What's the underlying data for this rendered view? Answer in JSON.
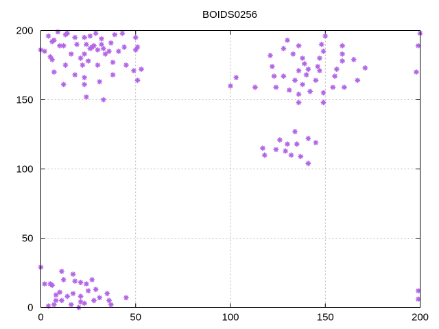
{
  "chart_data": {
    "type": "scatter",
    "title": "BOIDS0256",
    "xlabel": "",
    "ylabel": "",
    "xlim": [
      0,
      200
    ],
    "ylim": [
      0,
      200
    ],
    "x_ticks": [
      0,
      50,
      100,
      150,
      200
    ],
    "y_ticks": [
      0,
      50,
      100,
      150,
      200
    ],
    "grid": true,
    "legend": "none",
    "marker_color": "#b266e6",
    "marker": "asterisk",
    "series": [
      {
        "points": [
          [
            0,
            186
          ],
          [
            2,
            185
          ],
          [
            4,
            196
          ],
          [
            5,
            181
          ],
          [
            6,
            179
          ],
          [
            6,
            192
          ],
          [
            7,
            193
          ],
          [
            7,
            170
          ],
          [
            9,
            199
          ],
          [
            10,
            189
          ],
          [
            12,
            161
          ],
          [
            12,
            189
          ],
          [
            13,
            175
          ],
          [
            13,
            197
          ],
          [
            14,
            198
          ],
          [
            16,
            183
          ],
          [
            18,
            168
          ],
          [
            18,
            195
          ],
          [
            19,
            190
          ],
          [
            21,
            180
          ],
          [
            22,
            175
          ],
          [
            23,
            183
          ],
          [
            23,
            195
          ],
          [
            23,
            166
          ],
          [
            23,
            161
          ],
          [
            24,
            190
          ],
          [
            24,
            152
          ],
          [
            25,
            178
          ],
          [
            26,
            187
          ],
          [
            26,
            196
          ],
          [
            27,
            188
          ],
          [
            28,
            189
          ],
          [
            29,
            198
          ],
          [
            30,
            186
          ],
          [
            30,
            175
          ],
          [
            31,
            163
          ],
          [
            32,
            194
          ],
          [
            32,
            190
          ],
          [
            33,
            187
          ],
          [
            33,
            150
          ],
          [
            34,
            183
          ],
          [
            36,
            185
          ],
          [
            37,
            191
          ],
          [
            38,
            177
          ],
          [
            38,
            168
          ],
          [
            39,
            197
          ],
          [
            41,
            185
          ],
          [
            43,
            198
          ],
          [
            44,
            188
          ],
          [
            45,
            175
          ],
          [
            49,
            171
          ],
          [
            50,
            195
          ],
          [
            50,
            186
          ],
          [
            51,
            188
          ],
          [
            51,
            164
          ],
          [
            53,
            172
          ],
          [
            0,
            29
          ],
          [
            2,
            17
          ],
          [
            4,
            1
          ],
          [
            5,
            17
          ],
          [
            6,
            16
          ],
          [
            7,
            2
          ],
          [
            8,
            5
          ],
          [
            8,
            9
          ],
          [
            10,
            11
          ],
          [
            11,
            26
          ],
          [
            11,
            5
          ],
          [
            12,
            20
          ],
          [
            14,
            8
          ],
          [
            16,
            2
          ],
          [
            17,
            10
          ],
          [
            17,
            24
          ],
          [
            18,
            19
          ],
          [
            20,
            0
          ],
          [
            21,
            18
          ],
          [
            21,
            8
          ],
          [
            21,
            4
          ],
          [
            23,
            3
          ],
          [
            24,
            17
          ],
          [
            25,
            12
          ],
          [
            27,
            20
          ],
          [
            28,
            5
          ],
          [
            29,
            13
          ],
          [
            31,
            7
          ],
          [
            35,
            10
          ],
          [
            36,
            5
          ],
          [
            37,
            2
          ],
          [
            45,
            7
          ],
          [
            100,
            160
          ],
          [
            103,
            166
          ],
          [
            113,
            159
          ],
          [
            117,
            115
          ],
          [
            118,
            110
          ],
          [
            121,
            182
          ],
          [
            122,
            174
          ],
          [
            123,
            167
          ],
          [
            124,
            159
          ],
          [
            124,
            114
          ],
          [
            126,
            121
          ],
          [
            128,
            167
          ],
          [
            128,
            187
          ],
          [
            129,
            113
          ],
          [
            130,
            193
          ],
          [
            130,
            118
          ],
          [
            131,
            157
          ],
          [
            132,
            110
          ],
          [
            133,
            183
          ],
          [
            134,
            164
          ],
          [
            134,
            127
          ],
          [
            135,
            118
          ],
          [
            136,
            189
          ],
          [
            136,
            171
          ],
          [
            136,
            154
          ],
          [
            136,
            148
          ],
          [
            137,
            109
          ],
          [
            138,
            180
          ],
          [
            138,
            161
          ],
          [
            139,
            176
          ],
          [
            140,
            168
          ],
          [
            141,
            172
          ],
          [
            141,
            122
          ],
          [
            141,
            104
          ],
          [
            142,
            156
          ],
          [
            145,
            164
          ],
          [
            145,
            119
          ],
          [
            146,
            174
          ],
          [
            147,
            171
          ],
          [
            147,
            180
          ],
          [
            148,
            190
          ],
          [
            149,
            185
          ],
          [
            149,
            155
          ],
          [
            149,
            148
          ],
          [
            150,
            196
          ],
          [
            154,
            159
          ],
          [
            155,
            167
          ],
          [
            156,
            172
          ],
          [
            159,
            189
          ],
          [
            159,
            183
          ],
          [
            159,
            178
          ],
          [
            160,
            159
          ],
          [
            165,
            179
          ],
          [
            167,
            164
          ],
          [
            171,
            173
          ],
          [
            198,
            170
          ],
          [
            199,
            189
          ],
          [
            200,
            198
          ],
          [
            199,
            12
          ],
          [
            199,
            6
          ]
        ]
      }
    ]
  }
}
